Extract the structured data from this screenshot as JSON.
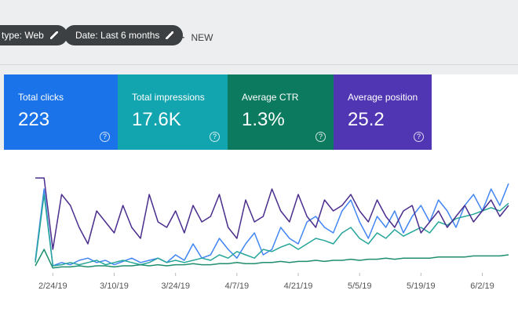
{
  "toolbar": {
    "chips": [
      "type: Web",
      "Date: Last 6 months"
    ],
    "new": "NEW"
  },
  "cards": [
    {
      "label": "Total clicks",
      "value": "223",
      "color": "#1a73e8"
    },
    {
      "label": "Total impressions",
      "value": "17.6K",
      "color": "#12a4af"
    },
    {
      "label": "Average CTR",
      "value": "1.3%",
      "color": "#0c7a5e"
    },
    {
      "label": "Average position",
      "value": "25.2",
      "color": "#5136b3"
    }
  ],
  "chart_data": {
    "type": "line",
    "xlim": [
      0,
      54
    ],
    "ylim": [
      0,
      100
    ],
    "xticks": [
      {
        "value": 2,
        "label": "2/24/19"
      },
      {
        "value": 9,
        "label": "3/10/19"
      },
      {
        "value": 16,
        "label": "3/24/19"
      },
      {
        "value": 23,
        "label": "4/7/19"
      },
      {
        "value": 30,
        "label": "4/21/19"
      },
      {
        "value": 37,
        "label": "5/5/19"
      },
      {
        "value": 44,
        "label": "5/19/19"
      },
      {
        "value": 51,
        "label": "6/2/19"
      }
    ],
    "series": [
      {
        "color": "#4285f4",
        "values": [
          10,
          75,
          5,
          8,
          6,
          10,
          12,
          8,
          10,
          6,
          9,
          12,
          8,
          10,
          12,
          8,
          15,
          10,
          25,
          12,
          15,
          30,
          20,
          12,
          25,
          35,
          15,
          20,
          40,
          30,
          25,
          45,
          50,
          40,
          35,
          55,
          65,
          45,
          30,
          50,
          40,
          55,
          35,
          50,
          60,
          45,
          65,
          55,
          40,
          60,
          70,
          55,
          75,
          60,
          80
        ]
      },
      {
        "color": "#26a69a",
        "values": [
          8,
          70,
          5,
          6,
          8,
          6,
          8,
          10,
          6,
          8,
          10,
          8,
          6,
          8,
          12,
          8,
          10,
          8,
          10,
          12,
          10,
          15,
          12,
          18,
          15,
          12,
          20,
          18,
          22,
          25,
          20,
          25,
          30,
          28,
          25,
          35,
          40,
          30,
          25,
          35,
          30,
          38,
          32,
          36,
          40,
          35,
          45,
          42,
          48,
          50,
          52,
          55,
          58,
          55,
          62
        ]
      },
      {
        "color": "#1e8e6e",
        "values": [
          5,
          20,
          3,
          4,
          4,
          5,
          4,
          5,
          5,
          4,
          5,
          5,
          6,
          5,
          6,
          5,
          6,
          6,
          7,
          6,
          6,
          7,
          7,
          8,
          7,
          7,
          8,
          8,
          9,
          8,
          9,
          9,
          10,
          9,
          10,
          10,
          11,
          10,
          11,
          11,
          12,
          11,
          12,
          12,
          12,
          12,
          13,
          13,
          13,
          13,
          14,
          14,
          14,
          14,
          15
        ]
      },
      {
        "color": "#4a2d8c",
        "values": [
          85,
          85,
          20,
          70,
          60,
          40,
          25,
          55,
          45,
          35,
          60,
          40,
          30,
          70,
          45,
          40,
          55,
          35,
          60,
          45,
          50,
          70,
          40,
          30,
          65,
          45,
          50,
          75,
          55,
          45,
          70,
          50,
          40,
          65,
          55,
          60,
          70,
          55,
          45,
          65,
          50,
          40,
          55,
          60,
          35,
          45,
          55,
          40,
          50,
          60,
          45,
          55,
          65,
          50,
          60
        ]
      }
    ]
  }
}
